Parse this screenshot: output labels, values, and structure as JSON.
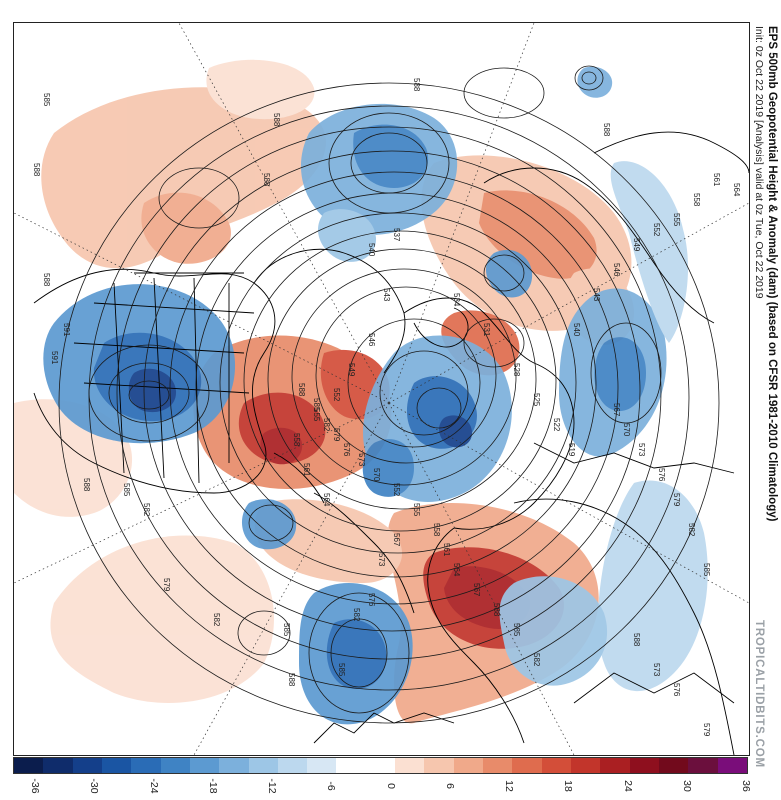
{
  "title": {
    "main": "EPS 500mb Geopotential Height & Anomaly (dam) (based on CFSR 1981-2010 Climatology)",
    "sub": "Init: 0z Oct 22 2019   [Analysis]   valid at 0z Tue, Oct 22 2019"
  },
  "watermark": "TROPICALTIDBITS.COM",
  "colorbar": {
    "ticks": [
      "-36",
      "-30",
      "-24",
      "-18",
      "-12",
      "-6",
      "0",
      "6",
      "12",
      "18",
      "24",
      "30",
      "36"
    ],
    "colors": [
      "#0b1d4d",
      "#0f2c6b",
      "#143f8a",
      "#1a55a3",
      "#2a6cb6",
      "#3f83c4",
      "#5c9ad1",
      "#7cb0dc",
      "#9dc6e6",
      "#bcd8ee",
      "#d7e7f4",
      "#ffffff",
      "#ffffff",
      "#fbe0d2",
      "#f6c6ae",
      "#f0a98a",
      "#e88b6a",
      "#df6c4e",
      "#d34e39",
      "#c2352b",
      "#aa1f22",
      "#8e0f1e",
      "#720a1c",
      "#6b0f3d",
      "#7a0d7a"
    ]
  },
  "map": {
    "contour_labels": [
      "585",
      "588",
      "588",
      "588",
      "588",
      "588",
      "588",
      "591",
      "591",
      "588",
      "585",
      "582",
      "579",
      "582",
      "585",
      "588",
      "585",
      "582",
      "576",
      "573",
      "567",
      "564",
      "561",
      "558",
      "555",
      "552",
      "549",
      "546",
      "543",
      "540",
      "537",
      "534",
      "531",
      "528",
      "525",
      "522",
      "519",
      "540",
      "543",
      "546",
      "549",
      "552",
      "555",
      "558",
      "561",
      "564",
      "567",
      "570",
      "573",
      "576",
      "579",
      "582",
      "585",
      "588",
      "573",
      "576",
      "579",
      "582",
      "585",
      "588",
      "567",
      "564",
      "561",
      "558",
      "555",
      "552",
      "570",
      "573",
      "576",
      "579",
      "582",
      "585",
      "588"
    ]
  },
  "chart_data": {
    "type": "heatmap",
    "title": "EPS 500mb Geopotential Height & Anomaly (dam) (based on CFSR 1981-2010 Climatology)",
    "colorbar_range": [
      -36,
      36
    ],
    "colorbar_step": 3,
    "colorbar_units": "dam"
  }
}
